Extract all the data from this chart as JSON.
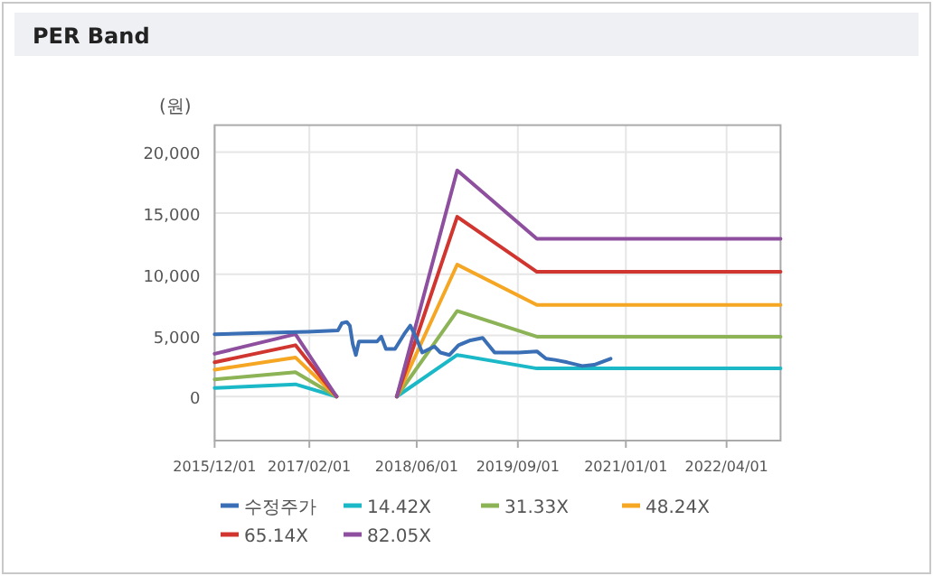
{
  "chart_data": {
    "type": "line",
    "title": "PER Band",
    "ylabel": "(원)",
    "xlim": [
      "2015-12-01",
      "2022-12-01"
    ],
    "xticks": [
      {
        "value": "2015-12-01",
        "label": "2015/12/01"
      },
      {
        "value": "2017-02-01",
        "label": "2017/02/01"
      },
      {
        "value": "2018-06-01",
        "label": "2018/06/01"
      },
      {
        "value": "2019-09-01",
        "label": "2019/09/01"
      },
      {
        "value": "2021-01-01",
        "label": "2021/01/01"
      },
      {
        "value": "2022-04-01",
        "label": "2022/04/01"
      }
    ],
    "ylim": [
      -3600,
      22200
    ],
    "yticks": [
      {
        "value": 0,
        "label": "0"
      },
      {
        "value": 5000,
        "label": "5,000"
      },
      {
        "value": 10000,
        "label": "10,000"
      },
      {
        "value": 15000,
        "label": "15,000"
      },
      {
        "value": 20000,
        "label": "20,000"
      }
    ],
    "grid": true,
    "legend": "bottom",
    "series": [
      {
        "name": "수정주가",
        "color": "#3a6fb5",
        "x": [
          "2015-12-01",
          "2016-06-20",
          "2017-01-24",
          "2017-06-10",
          "2017-06-28",
          "2017-07-20",
          "2017-08-03",
          "2017-08-16",
          "2017-08-30",
          "2017-09-13",
          "2017-12-04",
          "2017-12-23",
          "2018-01-13",
          "2018-02-23",
          "2018-04-05",
          "2018-05-03",
          "2018-05-30",
          "2018-06-26",
          "2018-08-20",
          "2018-09-16",
          "2018-10-27",
          "2018-12-07",
          "2019-01-30",
          "2019-03-26",
          "2019-05-19",
          "2019-09-05",
          "2019-11-26",
          "2020-01-06",
          "2020-02-16",
          "2020-04-11",
          "2020-06-18",
          "2020-08-11",
          "2020-10-24"
        ],
        "values": [
          5100,
          5200,
          5300,
          5400,
          6000,
          6100,
          5800,
          4300,
          3400,
          4500,
          4500,
          4900,
          3900,
          3900,
          5100,
          5800,
          4800,
          3600,
          4100,
          3600,
          3400,
          4200,
          4600,
          4800,
          3600,
          3600,
          3700,
          3100,
          3000,
          2800,
          2500,
          2600,
          3100
        ]
      },
      {
        "name": "14.42X",
        "color": "#1bb8c8",
        "x": [
          "2015-12-01",
          "2016-11-30",
          "2017-06-04"
        ],
        "values": [
          700,
          1000,
          0
        ]
      },
      {
        "name": "31.33X",
        "color": "#8cb356",
        "x": [
          "2015-12-01",
          "2016-11-30",
          "2017-06-04"
        ],
        "values": [
          1400,
          2000,
          0
        ]
      },
      {
        "name": "48.24X",
        "color": "#f5a623",
        "x": [
          "2015-12-01",
          "2016-11-30",
          "2017-06-04"
        ],
        "values": [
          2200,
          3200,
          0
        ]
      },
      {
        "name": "65.14X",
        "color": "#d0362f",
        "x": [
          "2015-12-01",
          "2016-11-30",
          "2017-06-04"
        ],
        "values": [
          2800,
          4200,
          0
        ]
      },
      {
        "name": "82.05X",
        "color": "#8e4f9f",
        "x": [
          "2015-12-01",
          "2016-11-30",
          "2017-06-04"
        ],
        "values": [
          3500,
          5100,
          0
        ]
      },
      {
        "color": "#1bb8c8",
        "x": [
          "2018-03-03",
          "2018-12-01",
          "2019-11-26",
          "2022-12-01"
        ],
        "values": [
          0,
          3400,
          2300,
          2300
        ]
      },
      {
        "color": "#8cb356",
        "x": [
          "2018-03-03",
          "2018-12-01",
          "2019-11-26",
          "2022-12-01"
        ],
        "values": [
          0,
          7000,
          4900,
          4900
        ]
      },
      {
        "color": "#f5a623",
        "x": [
          "2018-03-03",
          "2018-12-01",
          "2019-11-26",
          "2022-12-01"
        ],
        "values": [
          0,
          10800,
          7500,
          7500
        ]
      },
      {
        "color": "#d0362f",
        "x": [
          "2018-03-03",
          "2018-12-01",
          "2019-11-26",
          "2022-12-01"
        ],
        "values": [
          0,
          14700,
          10200,
          10200
        ]
      },
      {
        "color": "#8e4f9f",
        "x": [
          "2018-03-03",
          "2018-12-01",
          "2019-11-26",
          "2022-12-01"
        ],
        "values": [
          0,
          18500,
          12900,
          12900
        ]
      }
    ]
  }
}
